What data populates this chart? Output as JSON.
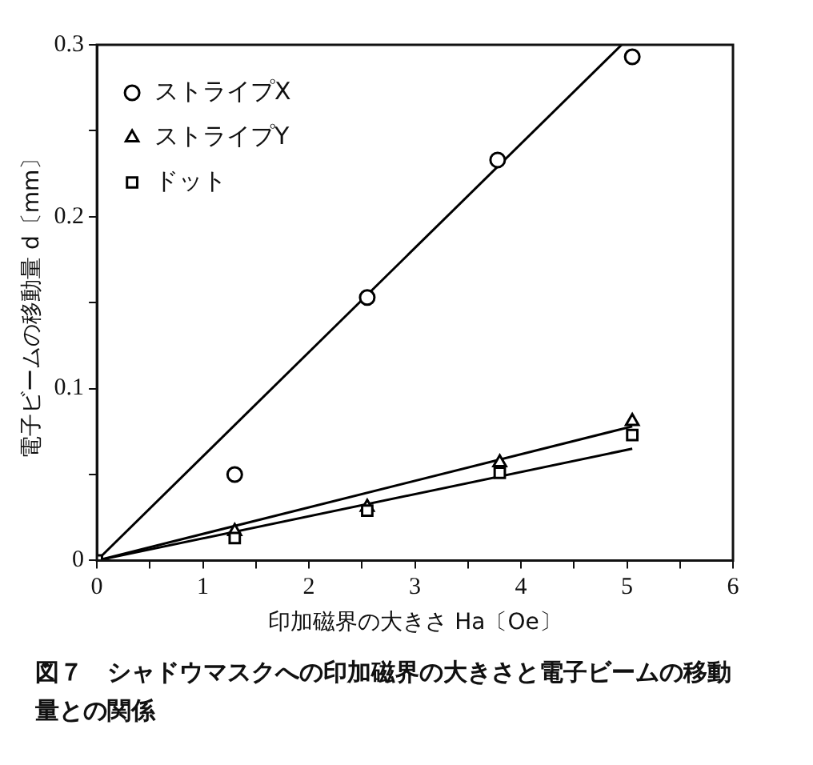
{
  "chart_data": {
    "type": "scatter",
    "title": "図７　シャドウマスクへの印加磁界の大きさと電子ビームの移動量との関係",
    "xlabel": "印加磁界の大きさ Ha〔Oe〕",
    "ylabel": "電子ビームの移動量 d〔mm〕",
    "xlim": [
      0,
      6
    ],
    "xticks": [
      0,
      {
        "value": 0.5,
        "label": null
      },
      1,
      {
        "value": 1.5,
        "label": null
      },
      2,
      {
        "value": 2.5,
        "label": null
      },
      3,
      {
        "value": 3.5,
        "label": null
      },
      4,
      {
        "value": 4.5,
        "label": null
      },
      5,
      {
        "value": 5.5,
        "label": null
      },
      6
    ],
    "ylim": [
      0,
      0.3
    ],
    "yticks": [
      0,
      {
        "value": 0.05,
        "label": null
      },
      0.1,
      {
        "value": 0.15,
        "label": null
      },
      0.2,
      {
        "value": 0.25,
        "label": null
      },
      0.3
    ],
    "grid": false,
    "legend": "top left",
    "series": [
      {
        "name": "ストライプX",
        "marker": "circle",
        "color": "#000000",
        "x": [
          1.3,
          2.55,
          3.78,
          5.05
        ],
        "values": [
          0.05,
          0.153,
          0.233,
          0.293
        ]
      },
      {
        "name": "ストライプY",
        "marker": "triangle",
        "color": "#000000",
        "x": [
          1.3,
          2.55,
          3.8,
          5.05
        ],
        "values": [
          0.017,
          0.031,
          0.057,
          0.081
        ]
      },
      {
        "name": "ドット",
        "marker": "square",
        "color": "#000000",
        "x": [
          0,
          1.3,
          2.55,
          3.8,
          5.05
        ],
        "values": [
          0,
          0.013,
          0.029,
          0.051,
          0.073
        ]
      },
      {
        "type": "line",
        "marker": "none",
        "color": "#000000",
        "x": [
          0,
          4.95
        ],
        "values": [
          0,
          0.3
        ]
      },
      {
        "type": "line",
        "marker": "none",
        "color": "#000000",
        "x": [
          0,
          5.05
        ],
        "values": [
          0,
          0.078
        ]
      },
      {
        "type": "line",
        "marker": "none",
        "color": "#000000",
        "x": [
          0,
          5.05
        ],
        "values": [
          0,
          0.065
        ]
      }
    ]
  }
}
